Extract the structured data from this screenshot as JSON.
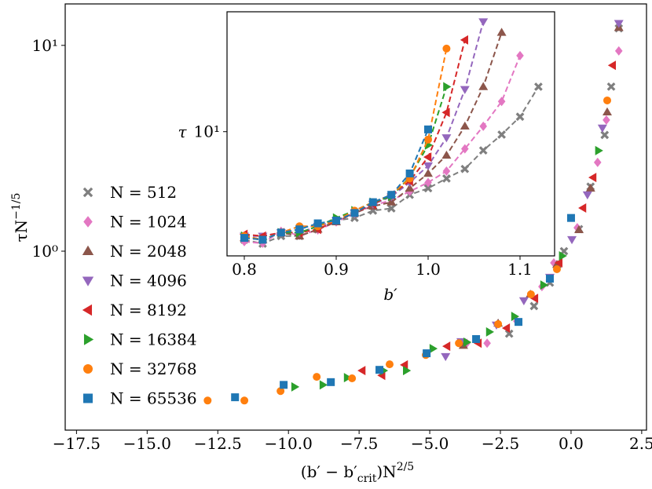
{
  "chart_data": [
    {
      "type": "scatter",
      "xlabel": [
        "(b′ − b′",
        "crit",
        ")N",
        "2/5"
      ],
      "ylabel": [
        "τN",
        "−1/5"
      ],
      "xlim": [
        -17.9,
        2.67
      ],
      "ylim": [
        0.135,
        15.9
      ],
      "log_y": true,
      "legend": "lower left",
      "xticks": [
        {
          "value": -17.5,
          "label": "−17.5"
        },
        {
          "value": -15,
          "label": "−15.0"
        },
        {
          "value": -12.5,
          "label": "−12.5"
        },
        {
          "value": -10,
          "label": "−10.0"
        },
        {
          "value": -7.5,
          "label": "−7.5"
        },
        {
          "value": -5,
          "label": "−5.0"
        },
        {
          "value": -2.5,
          "label": "−2.5"
        },
        {
          "value": 0,
          "label": "0.0"
        },
        2.5
      ],
      "yticks": [
        {
          "value": 1,
          "label": "10⁰"
        },
        {
          "value": 10,
          "label": "10¹"
        }
      ],
      "series": [
        {
          "name": "N = 512",
          "color": "#7f7f7f",
          "marker": "x",
          "x": [
            -2.19,
            -1.31,
            -0.75,
            -0.25,
            0.28,
            0.69,
            1.19,
            1.42,
            1.69
          ],
          "y": [
            0.397,
            0.541,
            0.703,
            1.0,
            1.28,
            2.06,
            3.67,
            6.3,
            12.1
          ]
        },
        {
          "name": "N = 1024",
          "color": "#e377c2",
          "marker": "D",
          "x": [
            -3.69,
            -2.97,
            -1.92,
            -1.03,
            -0.61,
            0.22,
            0.94,
            1.25,
            1.69
          ],
          "y": [
            0.357,
            0.357,
            0.457,
            0.673,
            0.877,
            1.3,
            2.7,
            4.34,
            9.4
          ]
        },
        {
          "name": "N = 2048",
          "color": "#8c564b",
          "marker": "^",
          "x": [
            -3.81,
            -2.58,
            -1.44,
            -0.5,
            0.28,
            0.69,
            1.28,
            1.69
          ],
          "y": [
            0.348,
            0.446,
            0.617,
            0.861,
            1.27,
            2.02,
            4.74,
            12.2
          ]
        },
        {
          "name": "N = 4096",
          "color": "#9467bd",
          "marker": "v",
          "x": [
            -4.44,
            -3.89,
            -2.64,
            -1.67,
            -0.75,
            0.03,
            0.58,
            1.11,
            1.69
          ],
          "y": [
            0.308,
            0.364,
            0.438,
            0.575,
            0.748,
            1.14,
            1.88,
            3.97,
            12.8
          ]
        },
        {
          "name": "N = 8192",
          "color": "#d62728",
          "marker": "<",
          "x": [
            -7.39,
            -6.69,
            -5.89,
            -4.39,
            -3.28,
            -2.28,
            -1.28,
            -0.42,
            0.42,
            0.78,
            1.47
          ],
          "y": [
            0.263,
            0.249,
            0.28,
            0.345,
            0.357,
            0.423,
            0.59,
            0.877,
            1.62,
            2.28,
            8.0
          ]
        },
        {
          "name": "N = 16384",
          "color": "#2ca02c",
          "marker": ">",
          "x": [
            -9.78,
            -8.78,
            -7.92,
            -6.64,
            -5.83,
            -4.89,
            -3.69,
            -2.89,
            -2.0,
            -0.97,
            -0.31,
            0.97
          ],
          "y": [
            0.219,
            0.224,
            0.243,
            0.263,
            0.263,
            0.336,
            0.361,
            0.405,
            0.482,
            0.685,
            0.949,
            3.08
          ]
        },
        {
          "name": "N = 32768",
          "color": "#ff7f0e",
          "marker": "o",
          "x": [
            -12.86,
            -11.56,
            -10.28,
            -9.0,
            -7.75,
            -6.42,
            -5.14,
            -3.97,
            -2.58,
            -1.42,
            -0.5,
            1.28
          ],
          "y": [
            0.188,
            0.188,
            0.209,
            0.245,
            0.241,
            0.282,
            0.313,
            0.357,
            0.442,
            0.617,
            0.817,
            5.4
          ]
        },
        {
          "name": "N = 65536",
          "color": "#1f77b4",
          "marker": "s",
          "x": [
            -11.89,
            -10.17,
            -8.5,
            -6.78,
            -5.11,
            -3.36,
            -1.86,
            -0.75,
            0
          ],
          "y": [
            0.195,
            0.224,
            0.231,
            0.265,
            0.319,
            0.374,
            0.453,
            0.735,
            1.45
          ]
        }
      ]
    },
    {
      "type": "line",
      "xlabel": "b′",
      "ylabel": "τ",
      "xlim": [
        0.7812,
        1.1376
      ],
      "ylim": [
        1.13,
        82
      ],
      "log_y": true,
      "xticks": [
        0.8,
        0.9,
        {
          "value": 1,
          "label": "1.0"
        },
        1.1
      ],
      "yticks": [
        {
          "value": 10,
          "label": "10¹"
        }
      ],
      "series": [
        {
          "color": "#7f7f7f",
          "marker": "x",
          "x": [
            0.8,
            0.82,
            0.84,
            0.86,
            0.88,
            0.9,
            0.92,
            0.94,
            0.96,
            0.98,
            1.0,
            1.02,
            1.04,
            1.06,
            1.08,
            1.1,
            1.12
          ],
          "values": [
            1.5,
            1.4,
            1.6,
            1.6,
            1.8,
            2.1,
            2.2,
            2.5,
            2.6,
            3.3,
            3.7,
            4.4,
            5.2,
            7.2,
            9.5,
            13,
            22
          ]
        },
        {
          "color": "#e377c2",
          "marker": "D",
          "x": [
            0.8,
            0.82,
            0.84,
            0.86,
            0.88,
            0.9,
            0.92,
            0.94,
            0.96,
            0.98,
            1.0,
            1.02,
            1.04,
            1.06,
            1.08,
            1.1
          ],
          "values": [
            1.45,
            1.41,
            1.74,
            1.62,
            1.78,
            2.05,
            2.38,
            2.74,
            3.0,
            3.5,
            4.1,
            5.0,
            7.4,
            11,
            17,
            38
          ]
        },
        {
          "color": "#8c564b",
          "marker": "^",
          "x": [
            0.8,
            0.82,
            0.84,
            0.86,
            0.88,
            0.9,
            0.92,
            0.94,
            0.96,
            0.98,
            1.0,
            1.02,
            1.04,
            1.06,
            1.08
          ],
          "values": [
            1.55,
            1.5,
            1.7,
            1.6,
            1.8,
            2.05,
            2.4,
            2.7,
            2.9,
            3.7,
            4.8,
            6.6,
            11,
            22,
            57
          ]
        },
        {
          "color": "#9467bd",
          "marker": "v",
          "x": [
            0.8,
            0.82,
            0.84,
            0.86,
            0.88,
            0.9,
            0.92,
            0.94,
            0.96,
            0.98,
            1.0,
            1.02,
            1.04,
            1.06
          ],
          "values": [
            1.6,
            1.6,
            1.7,
            1.7,
            1.9,
            2.1,
            2.4,
            2.8,
            3.2,
            4.1,
            5.5,
            9,
            21,
            69
          ]
        },
        {
          "color": "#d62728",
          "marker": "<",
          "x": [
            0.8,
            0.82,
            0.84,
            0.86,
            0.88,
            0.9,
            0.92,
            0.94,
            0.96,
            0.98,
            1.0,
            1.02,
            1.04
          ],
          "values": [
            1.65,
            1.6,
            1.7,
            1.7,
            1.8,
            2.1,
            2.4,
            2.8,
            3.3,
            4.2,
            6.4,
            14,
            50
          ]
        },
        {
          "color": "#2ca02c",
          "marker": ">",
          "x": [
            0.8,
            0.82,
            0.84,
            0.86,
            0.88,
            0.9,
            0.92,
            0.94,
            0.96,
            0.98,
            1.0,
            1.02
          ],
          "values": [
            1.6,
            1.5,
            1.7,
            1.7,
            1.9,
            2.2,
            2.5,
            2.9,
            3.2,
            4.5,
            7.9,
            22
          ]
        },
        {
          "color": "#ff7f0e",
          "marker": "o",
          "x": [
            0.8,
            0.82,
            0.84,
            0.86,
            0.88,
            0.9,
            0.92,
            0.94,
            0.96,
            0.98,
            1.0,
            1.02
          ],
          "values": [
            1.6,
            1.5,
            1.7,
            1.9,
            1.9,
            2.1,
            2.5,
            2.9,
            3.3,
            4.4,
            8.7,
            43
          ]
        },
        {
          "color": "#1f77b4",
          "marker": "s",
          "x": [
            0.8,
            0.82,
            0.84,
            0.86,
            0.88,
            0.9,
            0.92,
            0.94,
            0.96,
            0.98,
            1.0
          ],
          "values": [
            1.55,
            1.5,
            1.7,
            1.8,
            2.0,
            2.1,
            2.4,
            2.9,
            3.3,
            4.8,
            10.4
          ]
        }
      ]
    }
  ]
}
